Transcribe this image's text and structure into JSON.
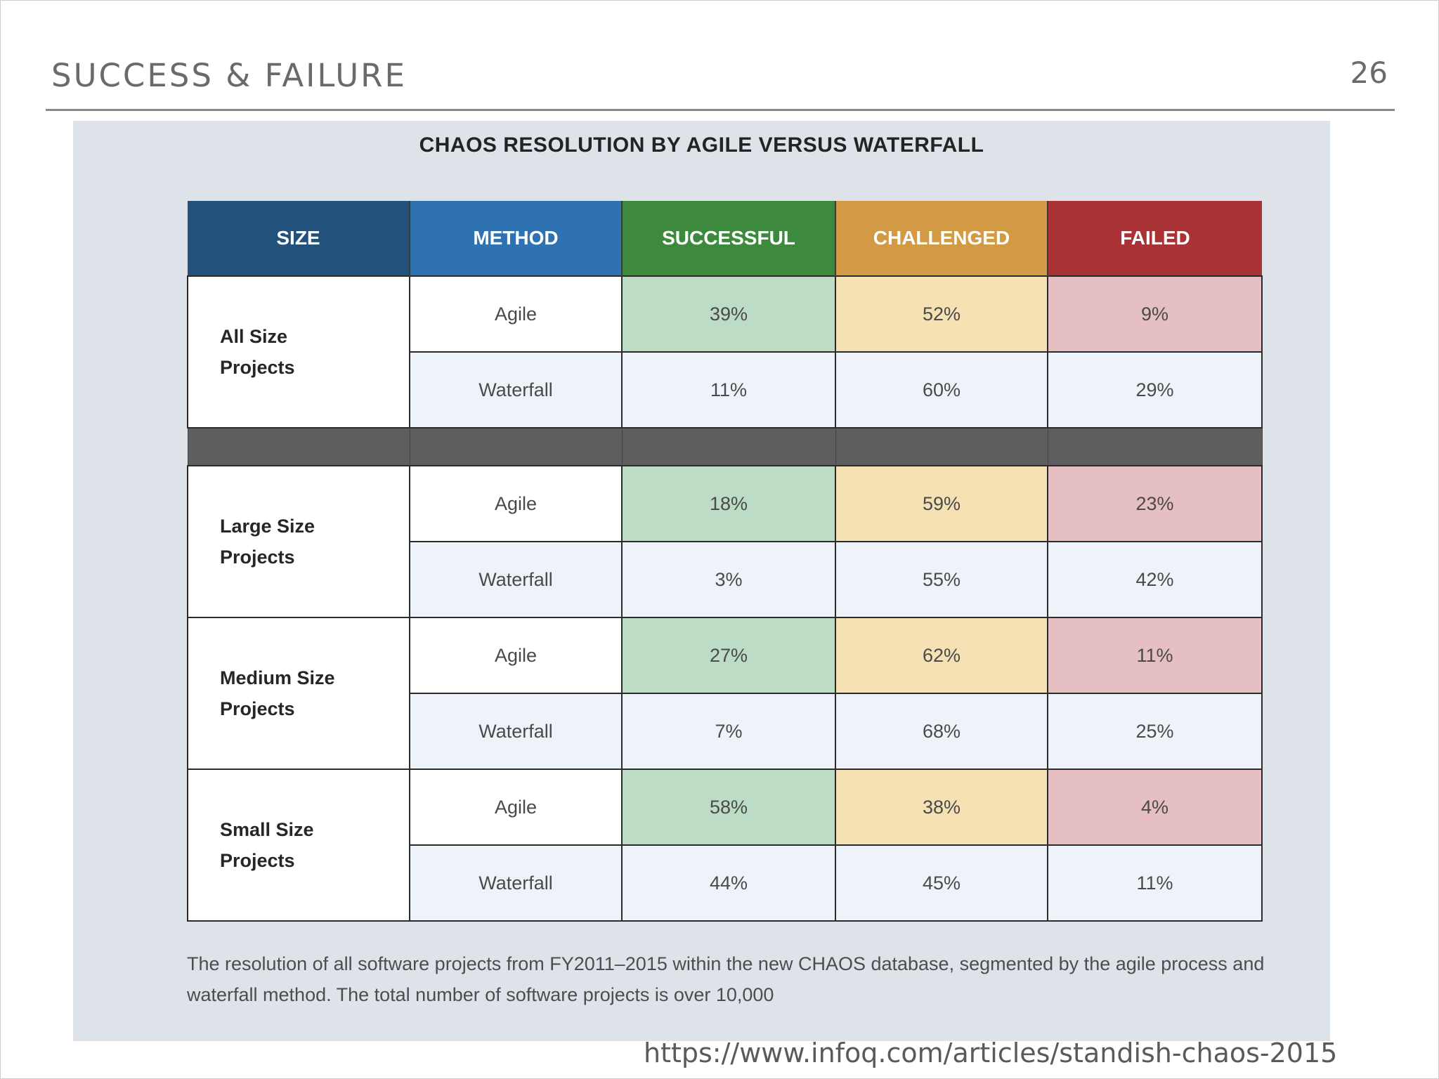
{
  "slide": {
    "title": "SUCCESS & FAILURE",
    "page_number": "26",
    "source_url": "https://www.infoq.com/articles/standish-chaos-2015"
  },
  "figure": {
    "title": "CHAOS RESOLUTION BY AGILE VERSUS WATERFALL",
    "caption": "The resolution of all software projects from FY2011–2015 within the new CHAOS database, segmented by the agile process and waterfall method. The total number of software projects is over 10,000",
    "colors": {
      "size_header": "#22527c",
      "method_header": "#2f72b2",
      "successful": "#3d8a3e",
      "challenged": "#d39a46",
      "failed": "#a83236"
    }
  },
  "chart_data": {
    "type": "table",
    "columns": [
      "SIZE",
      "METHOD",
      "SUCCESSFUL",
      "CHALLENGED",
      "FAILED"
    ],
    "groups": [
      {
        "size": "All Size Projects",
        "rows": [
          {
            "method": "Agile",
            "successful": "39%",
            "challenged": "52%",
            "failed": "9%"
          },
          {
            "method": "Waterfall",
            "successful": "11%",
            "challenged": "60%",
            "failed": "29%"
          }
        ]
      },
      {
        "size": "Large Size Projects",
        "rows": [
          {
            "method": "Agile",
            "successful": "18%",
            "challenged": "59%",
            "failed": "23%"
          },
          {
            "method": "Waterfall",
            "successful": "3%",
            "challenged": "55%",
            "failed": "42%"
          }
        ]
      },
      {
        "size": "Medium Size Projects",
        "rows": [
          {
            "method": "Agile",
            "successful": "27%",
            "challenged": "62%",
            "failed": "11%"
          },
          {
            "method": "Waterfall",
            "successful": "7%",
            "challenged": "68%",
            "failed": "25%"
          }
        ]
      },
      {
        "size": "Small Size Projects",
        "rows": [
          {
            "method": "Agile",
            "successful": "58%",
            "challenged": "38%",
            "failed": "4%"
          },
          {
            "method": "Waterfall",
            "successful": "44%",
            "challenged": "45%",
            "failed": "11%"
          }
        ]
      }
    ]
  }
}
